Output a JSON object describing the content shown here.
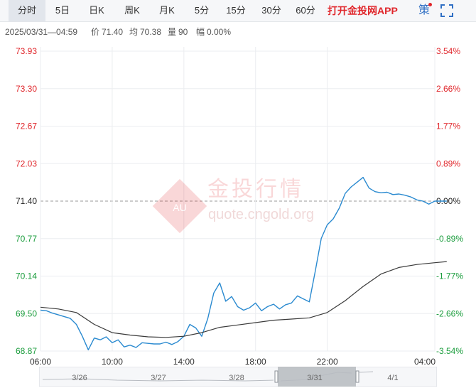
{
  "tabs": [
    {
      "label": "分时",
      "active": true
    },
    {
      "label": "5日"
    },
    {
      "label": "日K"
    },
    {
      "label": "周K"
    },
    {
      "label": "月K"
    },
    {
      "label": "5分"
    },
    {
      "label": "15分"
    },
    {
      "label": "30分"
    },
    {
      "label": "60分"
    }
  ],
  "promo_text": "打开金投网APP",
  "strategy_icon_text": "策",
  "info": {
    "datetime": "2025/03/31—04:59",
    "price_label": "价",
    "price": "71.40",
    "avg_label": "均",
    "avg": "70.38",
    "volume_label": "量",
    "volume": "90",
    "amplitude_label": "幅",
    "amplitude": "0.00%"
  },
  "watermark": {
    "brand": "金投行情",
    "url": "quote.cngold.org",
    "badge": "AU"
  },
  "colors": {
    "price_line": "#2a8ad0",
    "avg_line": "#3a3a3a",
    "up": "#e0262b",
    "down": "#1a9c3c",
    "grid": "#ebedf0",
    "ref_line": "#9a9a9a"
  },
  "chart_data": {
    "type": "line",
    "title": "",
    "reference_price": 71.4,
    "ylim": [
      68.87,
      73.93
    ],
    "y_ticks": [
      "73.93",
      "73.30",
      "72.67",
      "72.03",
      "71.40",
      "70.77",
      "70.14",
      "69.50",
      "68.87"
    ],
    "y_right_ticks": [
      "3.54%",
      "2.66%",
      "1.77%",
      "0.89%",
      "0.00%",
      "-0.89%",
      "-1.77%",
      "-2.66%",
      "-3.54%"
    ],
    "x_ticks": [
      "06:00",
      "10:00",
      "14:00",
      "18:00",
      "22:00",
      "04:00"
    ],
    "navigator_dates": [
      "3/26",
      "3/27",
      "3/28",
      "3/31",
      "4/1"
    ],
    "series": [
      {
        "name": "价",
        "x": [
          "06:00",
          "06:20",
          "06:40",
          "07:00",
          "07:20",
          "07:40",
          "08:00",
          "08:20",
          "08:40",
          "09:00",
          "09:20",
          "09:40",
          "10:00",
          "10:20",
          "10:40",
          "11:00",
          "11:20",
          "11:40",
          "12:00",
          "12:20",
          "12:40",
          "13:00",
          "13:20",
          "13:40",
          "14:00",
          "14:20",
          "14:40",
          "15:00",
          "15:20",
          "15:40",
          "16:00",
          "16:20",
          "16:40",
          "17:00",
          "17:20",
          "17:40",
          "18:00",
          "18:20",
          "18:40",
          "19:00",
          "19:20",
          "19:40",
          "20:00",
          "20:20",
          "20:40",
          "21:00",
          "21:20",
          "21:40",
          "22:00",
          "22:20",
          "22:40",
          "23:00",
          "23:20",
          "23:40",
          "00:00",
          "00:20",
          "00:40",
          "01:00",
          "01:20",
          "01:40",
          "02:00",
          "02:20",
          "02:40",
          "03:00",
          "03:20",
          "03:40",
          "04:00",
          "04:20",
          "04:40"
        ],
        "values": [
          69.56,
          69.55,
          69.51,
          69.48,
          69.45,
          69.42,
          69.32,
          69.12,
          68.89,
          69.09,
          69.06,
          69.11,
          69.01,
          69.06,
          68.94,
          68.97,
          68.93,
          69.01,
          69.0,
          68.99,
          68.99,
          69.02,
          68.98,
          69.03,
          69.12,
          69.32,
          69.26,
          69.12,
          69.42,
          69.85,
          70.02,
          69.71,
          69.79,
          69.62,
          69.56,
          69.6,
          69.68,
          69.55,
          69.62,
          69.66,
          69.58,
          69.65,
          69.68,
          69.8,
          69.75,
          69.7,
          70.22,
          70.77,
          71.0,
          71.1,
          71.28,
          71.53,
          71.64,
          71.72,
          71.8,
          71.62,
          71.56,
          71.54,
          71.55,
          71.51,
          71.52,
          71.5,
          71.47,
          71.42,
          71.4,
          71.35,
          71.4,
          71.4,
          71.4
        ]
      },
      {
        "name": "均",
        "x": [
          "06:00",
          "07:00",
          "08:00",
          "09:00",
          "10:00",
          "11:00",
          "12:00",
          "13:00",
          "14:00",
          "15:00",
          "16:00",
          "17:00",
          "18:00",
          "19:00",
          "20:00",
          "21:00",
          "22:00",
          "23:00",
          "00:00",
          "01:00",
          "02:00",
          "03:00",
          "04:00",
          "04:40"
        ],
        "values": [
          69.61,
          69.58,
          69.52,
          69.32,
          69.18,
          69.14,
          69.11,
          69.1,
          69.12,
          69.18,
          69.27,
          69.31,
          69.35,
          69.39,
          69.41,
          69.43,
          69.52,
          69.72,
          69.96,
          70.17,
          70.28,
          70.33,
          70.36,
          70.38
        ]
      }
    ],
    "grid": true
  }
}
